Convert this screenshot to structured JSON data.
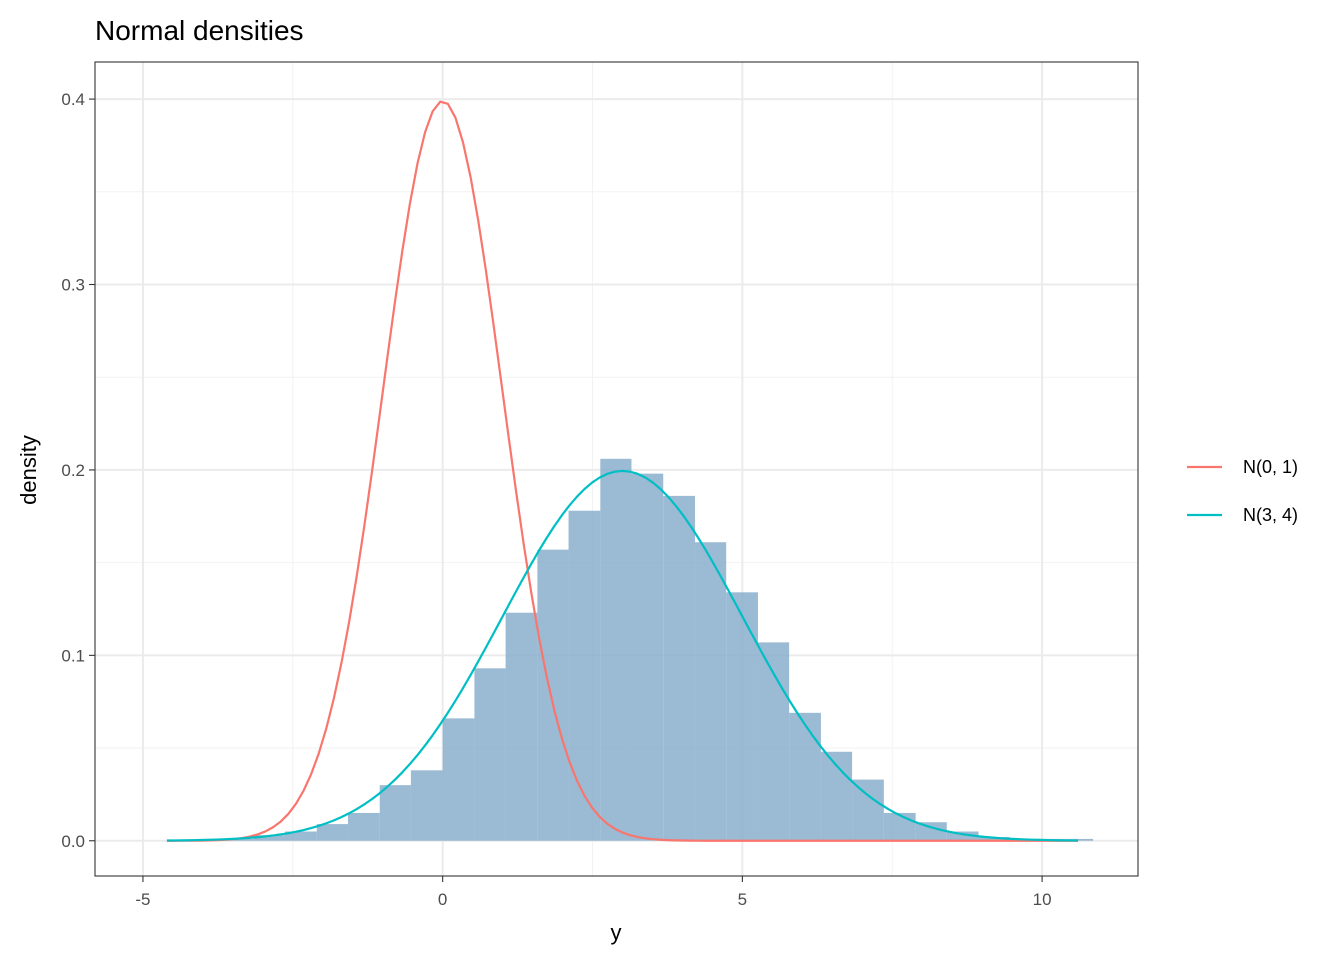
{
  "chart_data": {
    "type": "histogram+line",
    "title": "Normal densities",
    "xlabel": "y",
    "ylabel": "density",
    "xlim": [
      -5.8,
      11.6
    ],
    "ylim": [
      -0.019,
      0.42
    ],
    "x_ticks": [
      -5,
      0,
      5,
      10
    ],
    "x_tick_labels": [
      "-5",
      "0",
      "5",
      "10"
    ],
    "y_ticks": [
      0.0,
      0.1,
      0.2,
      0.3,
      0.4
    ],
    "y_tick_labels": [
      "0.0",
      "0.1",
      "0.2",
      "0.3",
      "0.4"
    ],
    "grid": true,
    "legend_position": "right",
    "histogram": {
      "color": "#8aaecd",
      "bin_width": 0.526,
      "bins": [
        {
          "x0": -3.68,
          "x1": -3.15,
          "density": 0.001
        },
        {
          "x0": -3.15,
          "x1": -2.63,
          "density": 0.003
        },
        {
          "x0": -2.63,
          "x1": -2.1,
          "density": 0.005
        },
        {
          "x0": -2.1,
          "x1": -1.58,
          "density": 0.009
        },
        {
          "x0": -1.58,
          "x1": -1.05,
          "density": 0.015
        },
        {
          "x0": -1.05,
          "x1": -0.53,
          "density": 0.03
        },
        {
          "x0": -0.53,
          "x1": 0.0,
          "density": 0.038
        },
        {
          "x0": 0.0,
          "x1": 0.53,
          "density": 0.066
        },
        {
          "x0": 0.53,
          "x1": 1.05,
          "density": 0.093
        },
        {
          "x0": 1.05,
          "x1": 1.58,
          "density": 0.123
        },
        {
          "x0": 1.58,
          "x1": 2.1,
          "density": 0.157
        },
        {
          "x0": 2.1,
          "x1": 2.63,
          "density": 0.178
        },
        {
          "x0": 2.63,
          "x1": 3.15,
          "density": 0.206
        },
        {
          "x0": 3.15,
          "x1": 3.68,
          "density": 0.198
        },
        {
          "x0": 3.68,
          "x1": 4.21,
          "density": 0.186
        },
        {
          "x0": 4.21,
          "x1": 4.73,
          "density": 0.161
        },
        {
          "x0": 4.73,
          "x1": 5.26,
          "density": 0.134
        },
        {
          "x0": 5.26,
          "x1": 5.78,
          "density": 0.107
        },
        {
          "x0": 5.78,
          "x1": 6.31,
          "density": 0.069
        },
        {
          "x0": 6.31,
          "x1": 6.83,
          "density": 0.048
        },
        {
          "x0": 6.83,
          "x1": 7.36,
          "density": 0.033
        },
        {
          "x0": 7.36,
          "x1": 7.89,
          "density": 0.015
        },
        {
          "x0": 7.89,
          "x1": 8.41,
          "density": 0.01
        },
        {
          "x0": 8.41,
          "x1": 8.94,
          "density": 0.005
        },
        {
          "x0": 8.94,
          "x1": 9.46,
          "density": 0.002
        },
        {
          "x0": 9.46,
          "x1": 9.99,
          "density": 0.001
        },
        {
          "x0": 9.99,
          "x1": 10.51,
          "density": 0.001
        },
        {
          "x0": 10.51,
          "x1": 10.85,
          "density": 0.001
        }
      ]
    },
    "series": [
      {
        "name": "N(0, 1)",
        "type": "line",
        "color": "#f8766d",
        "mean": 0,
        "variance": 1,
        "x_range": [
          -4.6,
          10.6
        ]
      },
      {
        "name": "N(3, 4)",
        "type": "line",
        "color": "#00bfc4",
        "mean": 3,
        "variance": 4,
        "x_range": [
          -4.6,
          10.6
        ]
      }
    ]
  }
}
